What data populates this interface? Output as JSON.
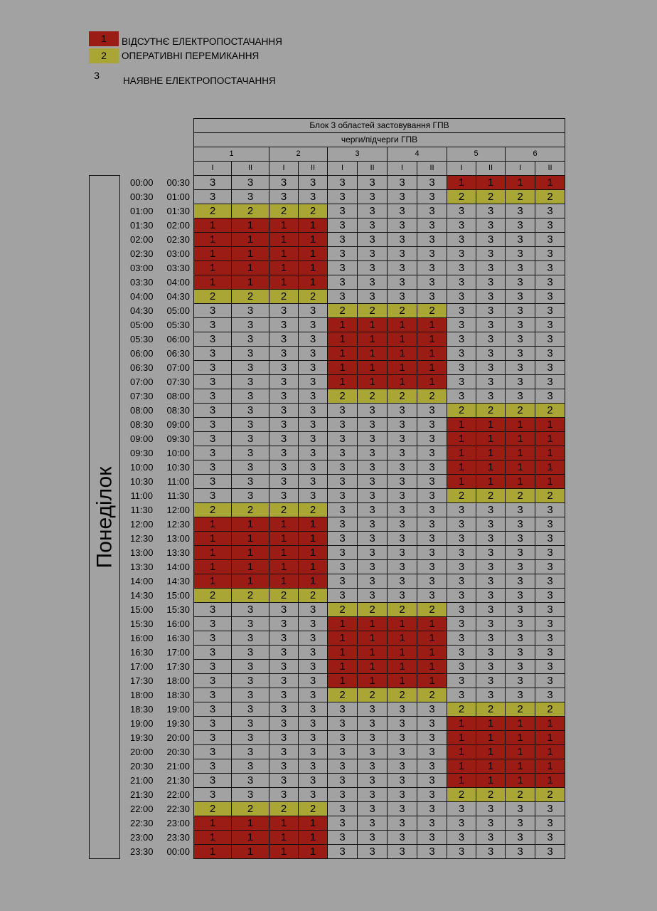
{
  "legend": [
    {
      "code": "1",
      "label": "ВІДСУТНЄ ЕЛЕКТРОПОСТАЧАННЯ",
      "color": "#9a1c14"
    },
    {
      "code": "2",
      "label": "ОПЕРАТИВНІ ПЕРЕМИКАННЯ",
      "color": "#a9a636"
    },
    {
      "code": "3",
      "label": "НАЯВНЕ ЕЛЕКТРОПОСТАЧАННЯ",
      "color": "transparent"
    }
  ],
  "table": {
    "title": "Блок 3 областей застовування ГПВ",
    "subtitle": "черги/підчерги ГПВ",
    "queues": [
      "1",
      "2",
      "3",
      "4",
      "5",
      "6"
    ],
    "subqueues": [
      "I",
      "II",
      "I",
      "II",
      "I",
      "II",
      "I",
      "II",
      "I",
      "II",
      "I",
      "II"
    ],
    "day": "Понеділок",
    "rows": [
      {
        "from": "00:00",
        "to": "00:30",
        "v": "333333331111"
      },
      {
        "from": "00:30",
        "to": "01:00",
        "v": "333333332222"
      },
      {
        "from": "01:00",
        "to": "01:30",
        "v": "222233333333"
      },
      {
        "from": "01:30",
        "to": "02:00",
        "v": "111133333333"
      },
      {
        "from": "02:00",
        "to": "02:30",
        "v": "111133333333"
      },
      {
        "from": "02:30",
        "to": "03:00",
        "v": "111133333333"
      },
      {
        "from": "03:00",
        "to": "03:30",
        "v": "111133333333"
      },
      {
        "from": "03:30",
        "to": "04:00",
        "v": "111133333333"
      },
      {
        "from": "04:00",
        "to": "04:30",
        "v": "222233333333"
      },
      {
        "from": "04:30",
        "to": "05:00",
        "v": "333322223333"
      },
      {
        "from": "05:00",
        "to": "05:30",
        "v": "333311113333"
      },
      {
        "from": "05:30",
        "to": "06:00",
        "v": "333311113333"
      },
      {
        "from": "06:00",
        "to": "06:30",
        "v": "333311113333"
      },
      {
        "from": "06:30",
        "to": "07:00",
        "v": "333311113333"
      },
      {
        "from": "07:00",
        "to": "07:30",
        "v": "333311113333"
      },
      {
        "from": "07:30",
        "to": "08:00",
        "v": "333322223333"
      },
      {
        "from": "08:00",
        "to": "08:30",
        "v": "333333332222"
      },
      {
        "from": "08:30",
        "to": "09:00",
        "v": "333333331111"
      },
      {
        "from": "09:00",
        "to": "09:30",
        "v": "333333331111"
      },
      {
        "from": "09:30",
        "to": "10:00",
        "v": "333333331111"
      },
      {
        "from": "10:00",
        "to": "10:30",
        "v": "333333331111"
      },
      {
        "from": "10:30",
        "to": "11:00",
        "v": "333333331111"
      },
      {
        "from": "11:00",
        "to": "11:30",
        "v": "333333332222"
      },
      {
        "from": "11:30",
        "to": "12:00",
        "v": "222233333333"
      },
      {
        "from": "12:00",
        "to": "12:30",
        "v": "111133333333"
      },
      {
        "from": "12:30",
        "to": "13:00",
        "v": "111133333333"
      },
      {
        "from": "13:00",
        "to": "13:30",
        "v": "111133333333"
      },
      {
        "from": "13:30",
        "to": "14:00",
        "v": "111133333333"
      },
      {
        "from": "14:00",
        "to": "14:30",
        "v": "111133333333"
      },
      {
        "from": "14:30",
        "to": "15:00",
        "v": "222233333333"
      },
      {
        "from": "15:00",
        "to": "15:30",
        "v": "333322223333"
      },
      {
        "from": "15:30",
        "to": "16:00",
        "v": "333311113333"
      },
      {
        "from": "16:00",
        "to": "16:30",
        "v": "333311113333"
      },
      {
        "from": "16:30",
        "to": "17:00",
        "v": "333311113333"
      },
      {
        "from": "17:00",
        "to": "17:30",
        "v": "333311113333"
      },
      {
        "from": "17:30",
        "to": "18:00",
        "v": "333311113333"
      },
      {
        "from": "18:00",
        "to": "18:30",
        "v": "333322223333"
      },
      {
        "from": "18:30",
        "to": "19:00",
        "v": "333333332222"
      },
      {
        "from": "19:00",
        "to": "19:30",
        "v": "333333331111"
      },
      {
        "from": "19:30",
        "to": "20:00",
        "v": "333333331111"
      },
      {
        "from": "20:00",
        "to": "20:30",
        "v": "333333331111"
      },
      {
        "from": "20:30",
        "to": "21:00",
        "v": "333333331111"
      },
      {
        "from": "21:00",
        "to": "21:30",
        "v": "333333331111"
      },
      {
        "from": "21:30",
        "to": "22:00",
        "v": "333333332222"
      },
      {
        "from": "22:00",
        "to": "22:30",
        "v": "222233333333"
      },
      {
        "from": "22:30",
        "to": "23:00",
        "v": "111133333333"
      },
      {
        "from": "23:00",
        "to": "23:30",
        "v": "111133333333"
      },
      {
        "from": "23:30",
        "to": "00:00",
        "v": "111133333333"
      }
    ]
  }
}
